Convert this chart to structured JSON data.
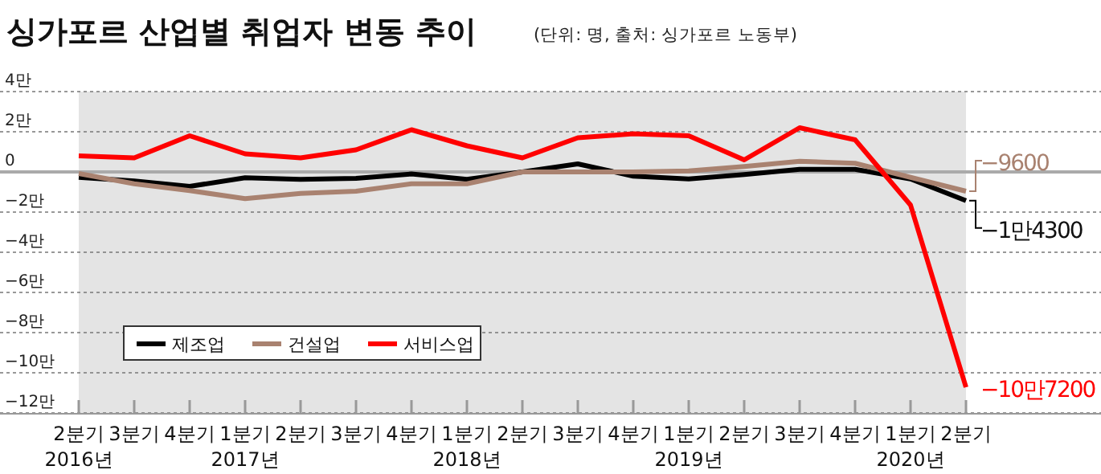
{
  "chart_data": {
    "type": "line",
    "title": "싱가포르 산업별 취업자 변동 추이",
    "subtitle": "(단위: 명, 출처: 싱가포르 노동부)",
    "categories": [
      "2분기\n2016년",
      "3분기",
      "4분기",
      "1분기\n2017년",
      "2분기",
      "3분기",
      "4분기",
      "1분기\n2018년",
      "2분기",
      "3분기",
      "4분기",
      "1분기\n2019년",
      "2분기",
      "3분기",
      "4분기",
      "1분기\n2020년",
      "2분기"
    ],
    "series": [
      {
        "name": "제조업",
        "color": "#000000",
        "values": [
          -0.27,
          -0.45,
          -0.72,
          -0.29,
          -0.37,
          -0.32,
          -0.1,
          -0.37,
          0,
          0.4,
          -0.21,
          -0.35,
          -0.13,
          0.13,
          0.13,
          -0.35,
          -1.43
        ]
      },
      {
        "name": "건설업",
        "color": "#a98270",
        "values": [
          -0.08,
          -0.59,
          -0.93,
          -1.33,
          -1.07,
          -0.96,
          -0.59,
          -0.59,
          0,
          0,
          0,
          0.05,
          0.27,
          0.53,
          0.43,
          -0.27,
          -0.96
        ]
      },
      {
        "name": "서비스업",
        "color": "#ff0000",
        "values": [
          0.8,
          0.7,
          1.8,
          0.9,
          0.7,
          1.1,
          2.1,
          1.3,
          0.7,
          1.7,
          1.9,
          1.8,
          0.6,
          2.2,
          1.6,
          -1.65,
          -10.72
        ]
      }
    ],
    "annotations": [
      "−1만4300",
      "−9600",
      "−10만7200"
    ],
    "ylim": [
      -12,
      4
    ],
    "yticks": [
      {
        "value": 4,
        "label": "4만"
      },
      {
        "value": 2,
        "label": "2만"
      },
      0,
      {
        "value": -2,
        "label": "−2만"
      },
      {
        "value": -4,
        "label": "−4만"
      },
      {
        "value": -6,
        "label": "−6만"
      },
      {
        "value": -8,
        "label": "−8만"
      },
      {
        "value": -10,
        "label": "−10만"
      },
      {
        "value": -12,
        "label": "−12만"
      }
    ],
    "grid": "y",
    "legend": "bottom left",
    "marker": "none",
    "line_style": "solid"
  }
}
